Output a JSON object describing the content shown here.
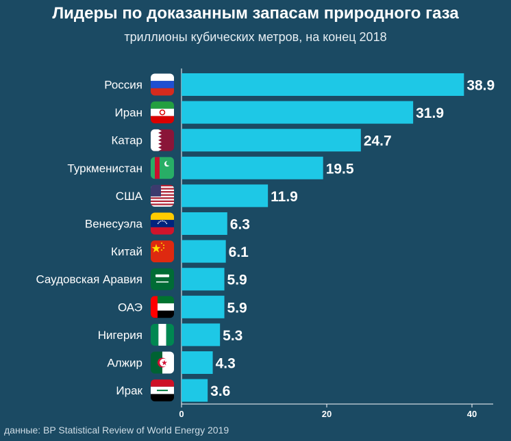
{
  "title": "Лидеры по доказанным запасам природного газа",
  "subtitle": "триллионы кубических метров, на конец 2018",
  "source": "данные: BP Statistical Review of World Energy 2019",
  "colors": {
    "background": "#1b4a63",
    "bar": "#1ec8e6",
    "text": "#ffffff"
  },
  "chart_data": {
    "type": "bar",
    "orientation": "horizontal",
    "title": "Лидеры по доказанным запасам природного газа",
    "subtitle": "триллионы кубических метров, на конец 2018",
    "categories": [
      "Россия",
      "Иран",
      "Катар",
      "Туркменистан",
      "США",
      "Венесуэла",
      "Китай",
      "Саудовская Аравия",
      "ОАЭ",
      "Нигерия",
      "Алжир",
      "Ирак"
    ],
    "values": [
      38.9,
      31.9,
      24.7,
      19.5,
      11.9,
      6.3,
      6.1,
      5.9,
      5.9,
      5.3,
      4.3,
      3.6
    ],
    "value_labels": [
      "38.9",
      "31.9",
      "24.7",
      "19.5",
      "11.9",
      "6.3",
      "6.1",
      "5.9",
      "5.9",
      "5.3",
      "4.3",
      "3.6"
    ],
    "flags": [
      "russia-flag-icon",
      "iran-flag-icon",
      "qatar-flag-icon",
      "turkmenistan-flag-icon",
      "usa-flag-icon",
      "venezuela-flag-icon",
      "china-flag-icon",
      "saudi-arabia-flag-icon",
      "uae-flag-icon",
      "nigeria-flag-icon",
      "algeria-flag-icon",
      "iraq-flag-icon"
    ],
    "xticks": [
      0,
      20,
      40
    ],
    "xtick_labels": [
      "0",
      "20",
      "40"
    ],
    "xlim": [
      0,
      43
    ],
    "grid": false,
    "legend": "none"
  }
}
